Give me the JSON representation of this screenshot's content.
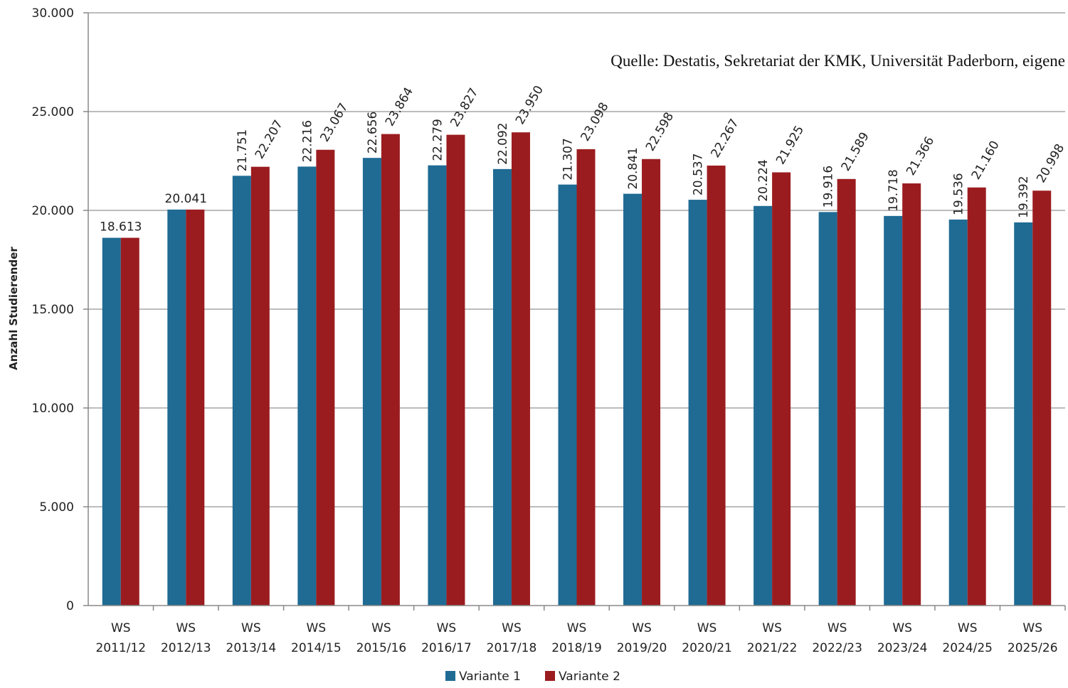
{
  "chart_data": {
    "type": "bar",
    "ylabel": "Anzahl Studierender",
    "source": "Quelle: Destatis, Sekretariat der KMK, Universität Paderborn, eigene",
    "ylim": [
      0,
      30000
    ],
    "yticks": [
      0,
      5000,
      10000,
      15000,
      20000,
      25000,
      30000
    ],
    "ytick_labels": [
      "0",
      "5.000",
      "10.000",
      "15.000",
      "20.000",
      "25.000",
      "30.000"
    ],
    "grid": true,
    "legend_position": "bottom-center",
    "categories": [
      [
        "WS",
        "2011/12"
      ],
      [
        "WS",
        "2012/13"
      ],
      [
        "WS",
        "2013/14"
      ],
      [
        "WS",
        "2014/15"
      ],
      [
        "WS",
        "2015/16"
      ],
      [
        "WS",
        "2016/17"
      ],
      [
        "WS",
        "2017/18"
      ],
      [
        "WS",
        "2018/19"
      ],
      [
        "WS",
        "2019/20"
      ],
      [
        "WS",
        "2020/21"
      ],
      [
        "WS",
        "2021/22"
      ],
      [
        "WS",
        "2022/23"
      ],
      [
        "WS",
        "2023/24"
      ],
      [
        "WS",
        "2024/25"
      ],
      [
        "WS",
        "2025/26"
      ]
    ],
    "series": [
      {
        "name": "Variante 1",
        "color": "#1f6b94",
        "values": [
          18613,
          20041,
          21751,
          22216,
          22656,
          22279,
          22092,
          21307,
          20841,
          20537,
          20224,
          19916,
          19718,
          19536,
          19392
        ],
        "labels": [
          null,
          null,
          "21.751",
          "22.216",
          "22.656",
          "22.279",
          "22.092",
          "21.307",
          "20.841",
          "20.537",
          "20.224",
          "19.916",
          "19.718",
          "19.536",
          "19.392"
        ]
      },
      {
        "name": "Variante 2",
        "color": "#9b1c1f",
        "values": [
          18613,
          20041,
          22207,
          23067,
          23864,
          23827,
          23950,
          23098,
          22598,
          22267,
          21925,
          21589,
          21366,
          21160,
          20998
        ],
        "labels": [
          null,
          null,
          "22.207",
          "23.067",
          "23.864",
          "23.827",
          "23.950",
          "23.098",
          "22.598",
          "22.267",
          "21.925",
          "21.589",
          "21.366",
          "21.160",
          "20.998"
        ]
      }
    ],
    "shared_labels": [
      "18.613",
      "20.041",
      null,
      null,
      null,
      null,
      null,
      null,
      null,
      null,
      null,
      null,
      null,
      null,
      null
    ]
  }
}
